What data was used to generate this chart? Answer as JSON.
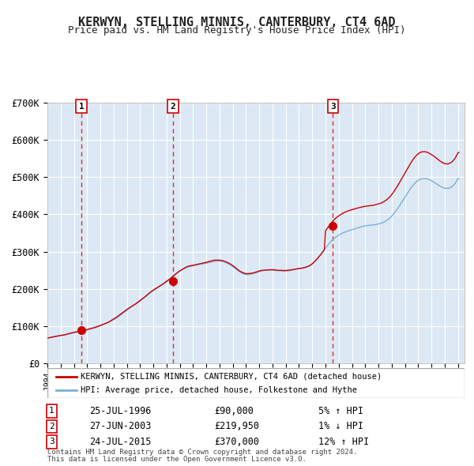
{
  "title": "KERWYN, STELLING MINNIS, CANTERBURY, CT4 6AD",
  "subtitle": "Price paid vs. HM Land Registry's House Price Index (HPI)",
  "ylim": [
    0,
    700000
  ],
  "yticks": [
    0,
    100000,
    200000,
    300000,
    400000,
    500000,
    600000,
    700000
  ],
  "ytick_labels": [
    "£0",
    "£100K",
    "£200K",
    "£300K",
    "£400K",
    "£500K",
    "£600K",
    "£700K"
  ],
  "bg_color": "#dce9f5",
  "plot_bg_color": "#dce9f5",
  "grid_color": "#ffffff",
  "hpi_color": "#7ab0d4",
  "price_color": "#cc0000",
  "sale_marker_color": "#cc0000",
  "dashed_line_color": "#cc0000",
  "transactions": [
    {
      "label": "1",
      "date_num": 1996.56,
      "price": 90000,
      "note": "25-JUL-1996",
      "amount": "£90,000",
      "hpi_note": "5% ↑ HPI"
    },
    {
      "label": "2",
      "date_num": 2003.49,
      "price": 219950,
      "note": "27-JUN-2003",
      "amount": "£219,950",
      "hpi_note": "1% ↓ HPI"
    },
    {
      "label": "3",
      "date_num": 2015.56,
      "price": 370000,
      "note": "24-JUL-2015",
      "amount": "£370,000",
      "hpi_note": "12% ↑ HPI"
    }
  ],
  "legend_line1": "KERWYN, STELLING MINNIS, CANTERBURY, CT4 6AD (detached house)",
  "legend_line2": "HPI: Average price, detached house, Folkestone and Hythe",
  "footnote1": "Contains HM Land Registry data © Crown copyright and database right 2024.",
  "footnote2": "This data is licensed under the Open Government Licence v3.0."
}
